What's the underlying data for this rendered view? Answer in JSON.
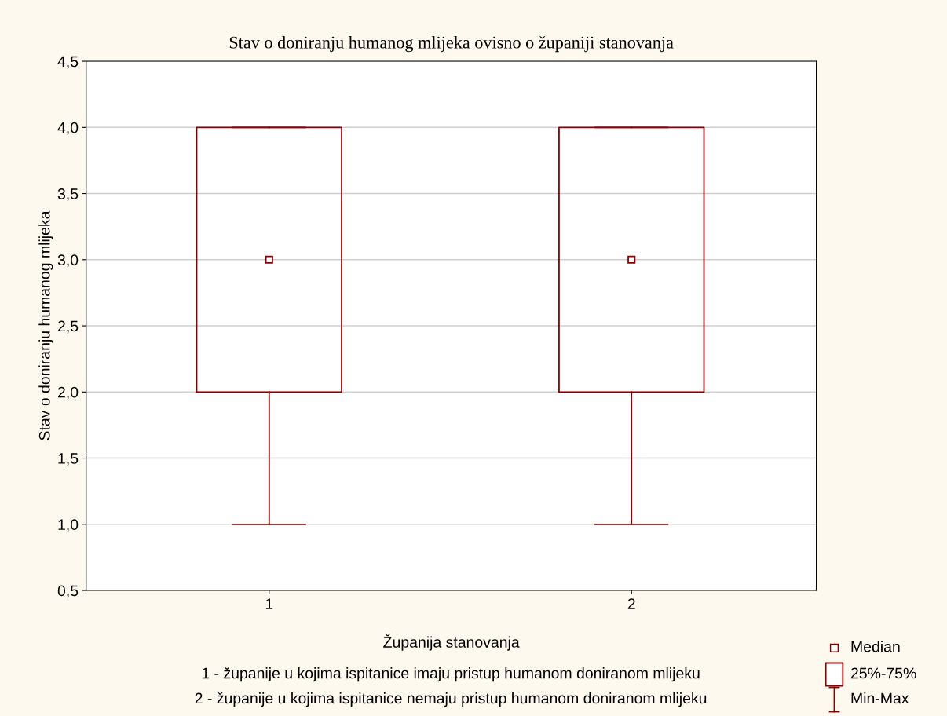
{
  "chart_data": {
    "type": "box",
    "title": "Stav o doniranju humanog mlijeka ovisno o županiji stanovanja",
    "xlabel": "Županija stanovanja",
    "ylabel": "Stav o doniranju humanog mlijeka",
    "categories": [
      "1",
      "2"
    ],
    "boxes": [
      {
        "low": 1.0,
        "q1": 2.0,
        "median": 3.0,
        "q3": 4.0,
        "high": 4.0
      },
      {
        "low": 1.0,
        "q1": 2.0,
        "median": 3.0,
        "q3": 4.0,
        "high": 4.0
      }
    ],
    "color": "#8b0000",
    "ylim": [
      0.5,
      4.5
    ],
    "yticks": [
      {
        "value": 0.5,
        "label": "0,5"
      },
      {
        "value": 1.0,
        "label": "1,0"
      },
      {
        "value": 1.5,
        "label": "1,5"
      },
      {
        "value": 2.0,
        "label": "2,0"
      },
      {
        "value": 2.5,
        "label": "2,5"
      },
      {
        "value": 3.0,
        "label": "3,0"
      },
      {
        "value": 3.5,
        "label": "3,5"
      },
      {
        "value": 4.0,
        "label": "4,0"
      },
      {
        "value": 4.5,
        "label": "4,5"
      }
    ],
    "grid": "y",
    "marker": "square",
    "annotations": [
      "1 - županije u kojima ispitanice imaju pristup humanom doniranom mlijeku",
      "2 - županije u kojima ispitanice nemaju pristup humanom doniranom mlijeku",
      "Median",
      "25%-75%",
      "Min-Max"
    ]
  }
}
